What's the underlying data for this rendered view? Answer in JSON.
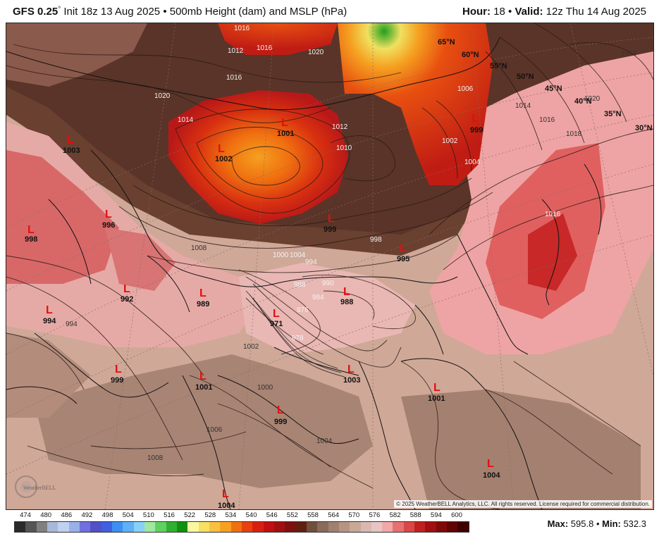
{
  "header": {
    "model": "GFS 0.25",
    "degree": "°",
    "init": " Init 18z 13 Aug 2025",
    "separator": " • ",
    "product": "500mb Height (dam) and MSLP (hPa)",
    "hour_label": "Hour:",
    "hour_value": " 18",
    "valid_label": "Valid:",
    "valid_value": " 12z Thu 14 Aug 2025"
  },
  "latitude_labels": [
    "65°N",
    "60°N",
    "55°N",
    "50°N",
    "45°N",
    "40°N",
    "35°N",
    "30°N"
  ],
  "lows": [
    {
      "label": "L",
      "value": "1003"
    },
    {
      "label": "L",
      "value": "998"
    },
    {
      "label": "L",
      "value": "996"
    },
    {
      "label": "L",
      "value": "992"
    },
    {
      "label": "L",
      "value": "994"
    },
    {
      "label": "L",
      "value": "989"
    },
    {
      "label": "L",
      "value": "971"
    },
    {
      "label": "L",
      "value": "988"
    },
    {
      "label": "L",
      "value": "999"
    },
    {
      "label": "L",
      "value": "995"
    },
    {
      "label": "L",
      "value": "1002"
    },
    {
      "label": "L",
      "value": "1001"
    },
    {
      "label": "L",
      "value": "999"
    },
    {
      "label": "L",
      "value": "999"
    },
    {
      "label": "L",
      "value": "1001"
    },
    {
      "label": "L",
      "value": "999"
    },
    {
      "label": "L",
      "value": "1003"
    },
    {
      "label": "L",
      "value": "1001"
    },
    {
      "label": "L",
      "value": "1004"
    },
    {
      "label": "L",
      "value": "1004"
    }
  ],
  "isobar_labels": [
    "1016",
    "1012",
    "1016",
    "1020",
    "1016",
    "1014",
    "1020",
    "1012",
    "1010",
    "1008",
    "1004",
    "1000",
    "994",
    "988",
    "990",
    "984",
    "976",
    "978",
    "994",
    "998",
    "1000",
    "1006",
    "1008",
    "1004",
    "1002",
    "1016",
    "1018",
    "1020",
    "1016",
    "1014",
    "1006",
    "1002",
    "1004",
    "1016"
  ],
  "copyright": "© 2025 WeatherBELL Analytics, LLC. All rights reserved. License required for commercial distribution.",
  "logo_text": "WeatherBELL",
  "colorbar": {
    "labels": [
      "474",
      "480",
      "486",
      "492",
      "498",
      "504",
      "510",
      "516",
      "522",
      "528",
      "534",
      "540",
      "546",
      "552",
      "558",
      "564",
      "570",
      "576",
      "582",
      "588",
      "594",
      "600"
    ],
    "colors": [
      "#2a2a2a",
      "#555555",
      "#808080",
      "#a8b8d8",
      "#c0d0ee",
      "#9ab0e8",
      "#7070e0",
      "#5050c8",
      "#4060e0",
      "#3c90f0",
      "#60b0f8",
      "#88d0f8",
      "#a0e8a0",
      "#60d060",
      "#30b030",
      "#109010",
      "#f8f8a0",
      "#f8e060",
      "#f8c040",
      "#f8a020",
      "#f07010",
      "#e84010",
      "#d82010",
      "#c01010",
      "#a01010",
      "#801010",
      "#602010",
      "#70503c",
      "#8a6a5a",
      "#a08070",
      "#b89484",
      "#caa898",
      "#d8b8b0",
      "#e8c4c4",
      "#f0a8a8",
      "#e87070",
      "#d84848",
      "#c02020",
      "#a01010",
      "#800808",
      "#600404",
      "#400000"
    ]
  },
  "stats": {
    "max_label": "Max:",
    "max_value": " 595.8",
    "sep": " • ",
    "min_label": "Min:",
    "min_value": " 532.3"
  }
}
